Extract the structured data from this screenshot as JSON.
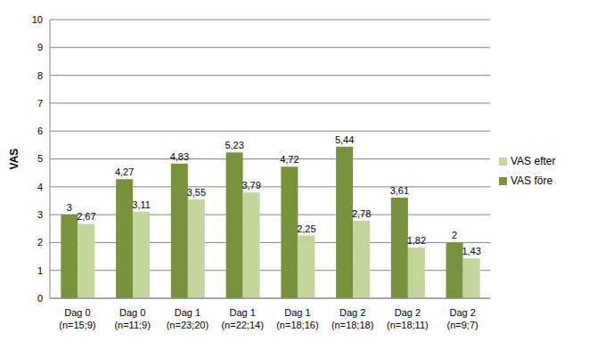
{
  "chart_data": {
    "type": "bar",
    "y_label": "VAS",
    "categories": [
      "Dag 0\n(n=15;9)",
      "Dag 0\n(n=11;9)",
      "Dag 1\n(n=23;20)",
      "Dag 1\n(n=22;14)",
      "Dag 1\n(n=18;16)",
      "Dag 2\n(n=18;18)",
      "Dag 2\n(n=18;11)",
      "Dag 2\n(n=9;7)"
    ],
    "series": [
      {
        "name": "VAS före",
        "color": "#77933c",
        "values": [
          3,
          4.27,
          4.83,
          5.23,
          4.72,
          5.44,
          3.61,
          2
        ],
        "value_labels": [
          "3",
          "4,27",
          "4,83",
          "5,23",
          "4,72",
          "5,44",
          "3,61",
          "2"
        ]
      },
      {
        "name": "VAS efter",
        "color": "#c3d69b",
        "values": [
          2.67,
          3.11,
          3.55,
          3.79,
          2.25,
          2.78,
          1.82,
          1.43
        ],
        "value_labels": [
          "2,67",
          "3,11",
          "3,55",
          "3,79",
          "2,25",
          "2,78",
          "1,82",
          "1,43"
        ]
      }
    ],
    "ylim": [
      0,
      10
    ],
    "yticks": [
      0,
      1,
      2,
      3,
      4,
      5,
      6,
      7,
      8,
      9,
      10
    ],
    "grid": true,
    "legend": "right",
    "data_labels": true
  }
}
